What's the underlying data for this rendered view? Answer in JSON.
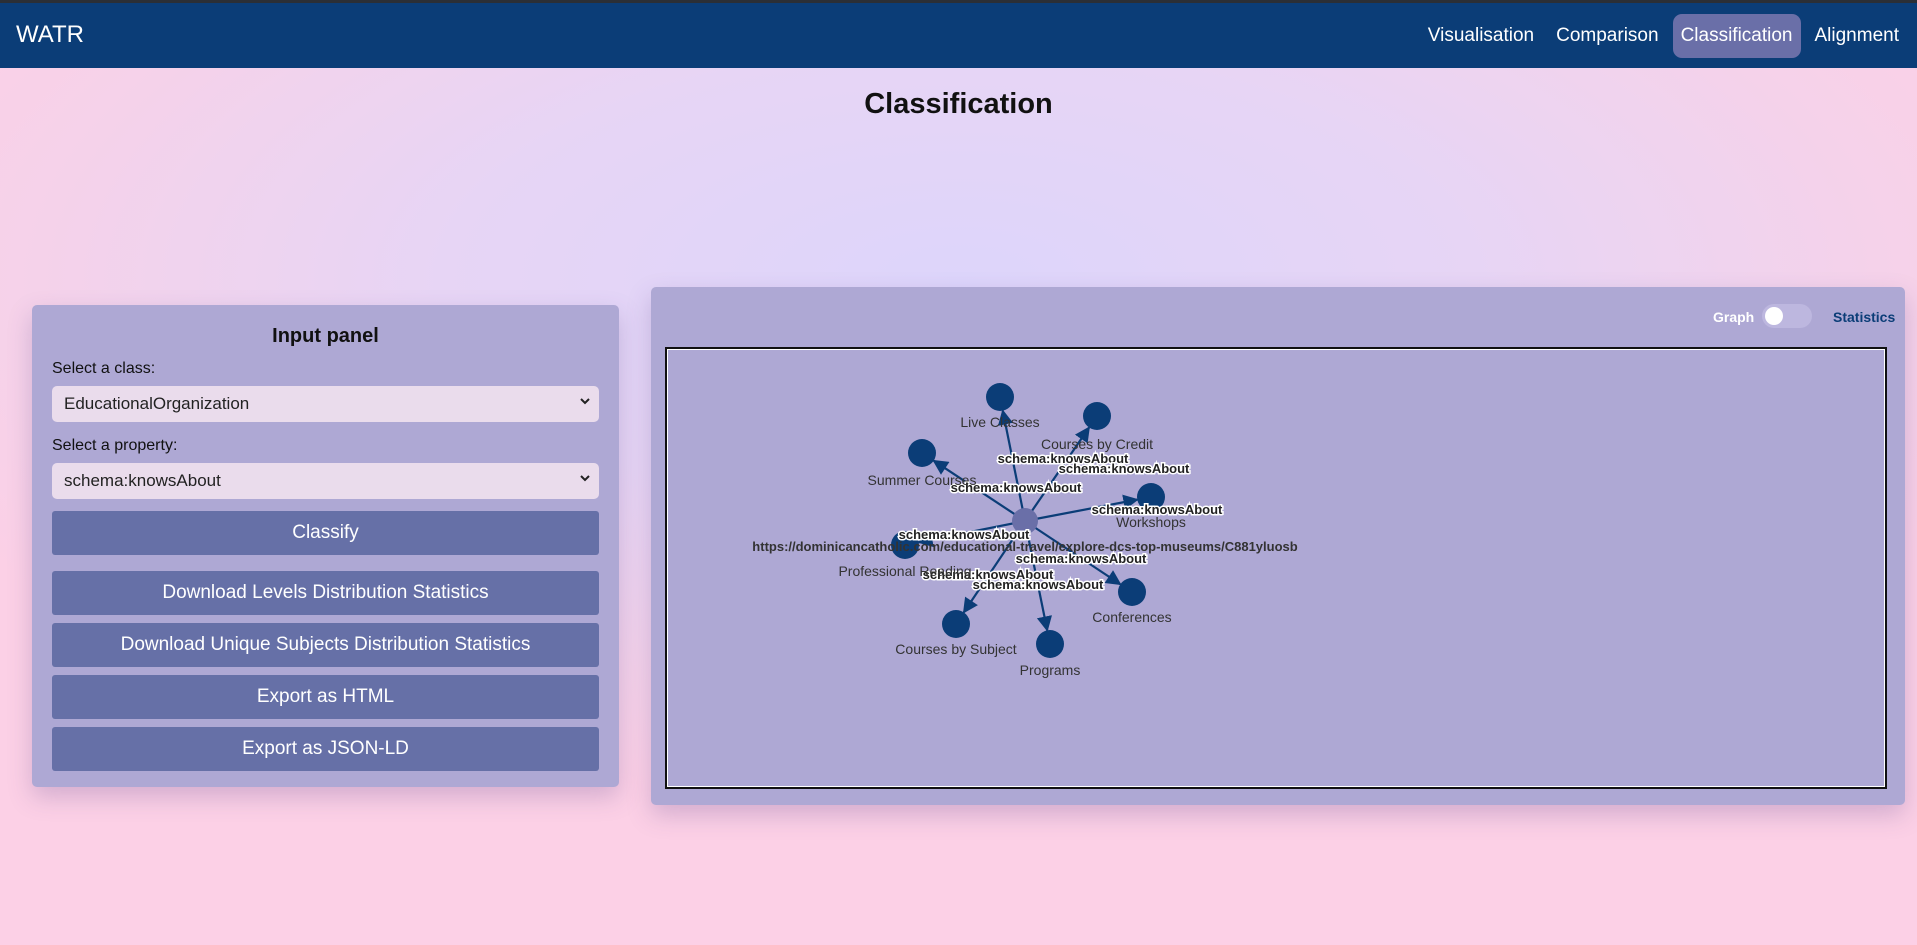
{
  "app": {
    "brand": "WATR"
  },
  "nav": {
    "items": [
      {
        "label": "Visualisation",
        "active": false
      },
      {
        "label": "Comparison",
        "active": false
      },
      {
        "label": "Classification",
        "active": true
      },
      {
        "label": "Alignment",
        "active": false
      }
    ]
  },
  "page": {
    "title": "Classification"
  },
  "input_panel": {
    "title": "Input panel",
    "class_label": "Select a class:",
    "class_value": "EducationalOrganization",
    "property_label": "Select a property:",
    "property_value": "schema:knowsAbout",
    "buttons": {
      "classify": "Classify",
      "download_levels": "Download Levels Distribution Statistics",
      "download_unique": "Download Unique Subjects Distribution Statistics",
      "export_html": "Export as HTML",
      "export_jsonld": "Export as JSON-LD"
    }
  },
  "graph_panel": {
    "toggle_left": "Graph",
    "toggle_right": "Statistics",
    "graph": {
      "center": {
        "label": "https://dominicancatholic.com/educational-travel/explore-dcs-top-museums/C881yluosb"
      },
      "edge_label": "schema:knowsAbout",
      "nodes": [
        {
          "label": "Live Classes"
        },
        {
          "label": "Courses by Credit"
        },
        {
          "label": "Summer Courses"
        },
        {
          "label": "Workshops"
        },
        {
          "label": "Professional Reading"
        },
        {
          "label": "Conferences"
        },
        {
          "label": "Courses by Subject"
        },
        {
          "label": "Programs"
        }
      ]
    }
  },
  "colors": {
    "navbar": "#0b3d77",
    "panel": "#aea8d4",
    "button": "#6670a7",
    "node": "#0b3d77",
    "center_node": "#6a6fa8"
  }
}
